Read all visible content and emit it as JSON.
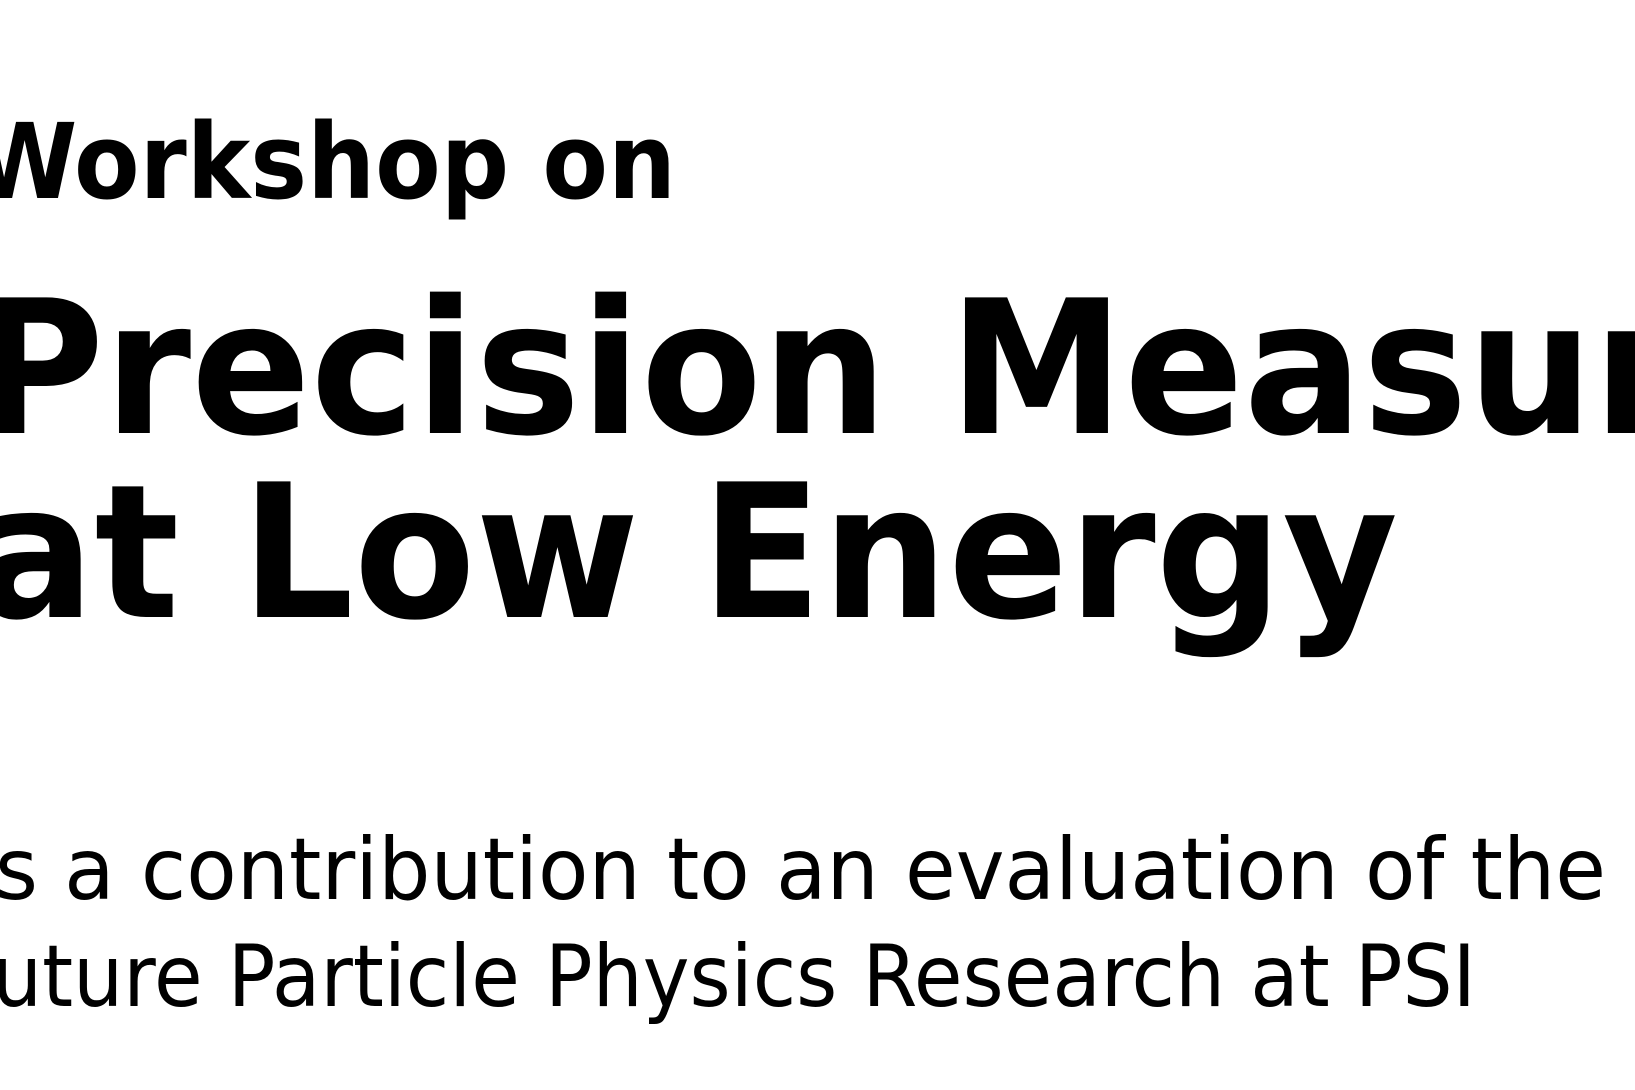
{
  "header": {
    "kicker": "Workshop on",
    "title_lines": [
      "Precision Measur",
      "at Low Energy"
    ]
  },
  "body": {
    "lines": [
      "s a contribution to an evaluation of the",
      "uture Particle Physics Research at PSI"
    ]
  }
}
